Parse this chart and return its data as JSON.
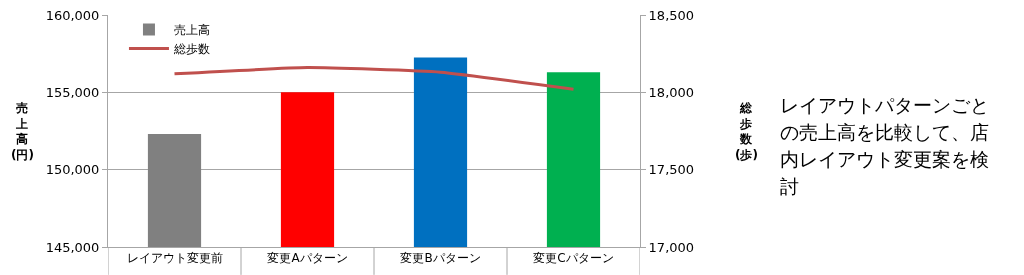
{
  "chart_data": {
    "type": "bar",
    "ylabel": "売上高(円)",
    "y2label": "総歩数(歩)",
    "categories": [
      "レイアウト変更前",
      "変更Aパターン",
      "変更Bパターン",
      "変更Cパターン"
    ],
    "series": [
      {
        "name": "売上高",
        "colors": [
          "#808080",
          "#ff0000",
          "#0070c0",
          "#00b050"
        ],
        "values": [
          152300,
          155000,
          157250,
          156300
        ]
      },
      {
        "name": "総歩数",
        "type": "line",
        "axis": "y2",
        "color": "#c0504d",
        "values": [
          18120,
          18160,
          18130,
          18020
        ]
      }
    ],
    "ylim": [
      145000,
      160000
    ],
    "yticks": [
      {
        "value": 145000,
        "label": "145,000"
      },
      {
        "value": 150000,
        "label": "150,000"
      },
      {
        "value": 155000,
        "label": "155,000"
      },
      {
        "value": 160000,
        "label": "160,000"
      }
    ],
    "y2lim": [
      17000,
      18500
    ],
    "y2ticks": [
      {
        "value": 17000,
        "label": "17,000"
      },
      {
        "value": 17500,
        "label": "17,500"
      },
      {
        "value": 18000,
        "label": "18,000"
      },
      {
        "value": 18500,
        "label": "18,500"
      }
    ],
    "grid": "y",
    "legend": "top left",
    "marker": "none",
    "line_style": "solid",
    "annotations": [
      "レイアウトパターンごとの売上高を比較して、店内レイアウト変更案を検討"
    ]
  }
}
